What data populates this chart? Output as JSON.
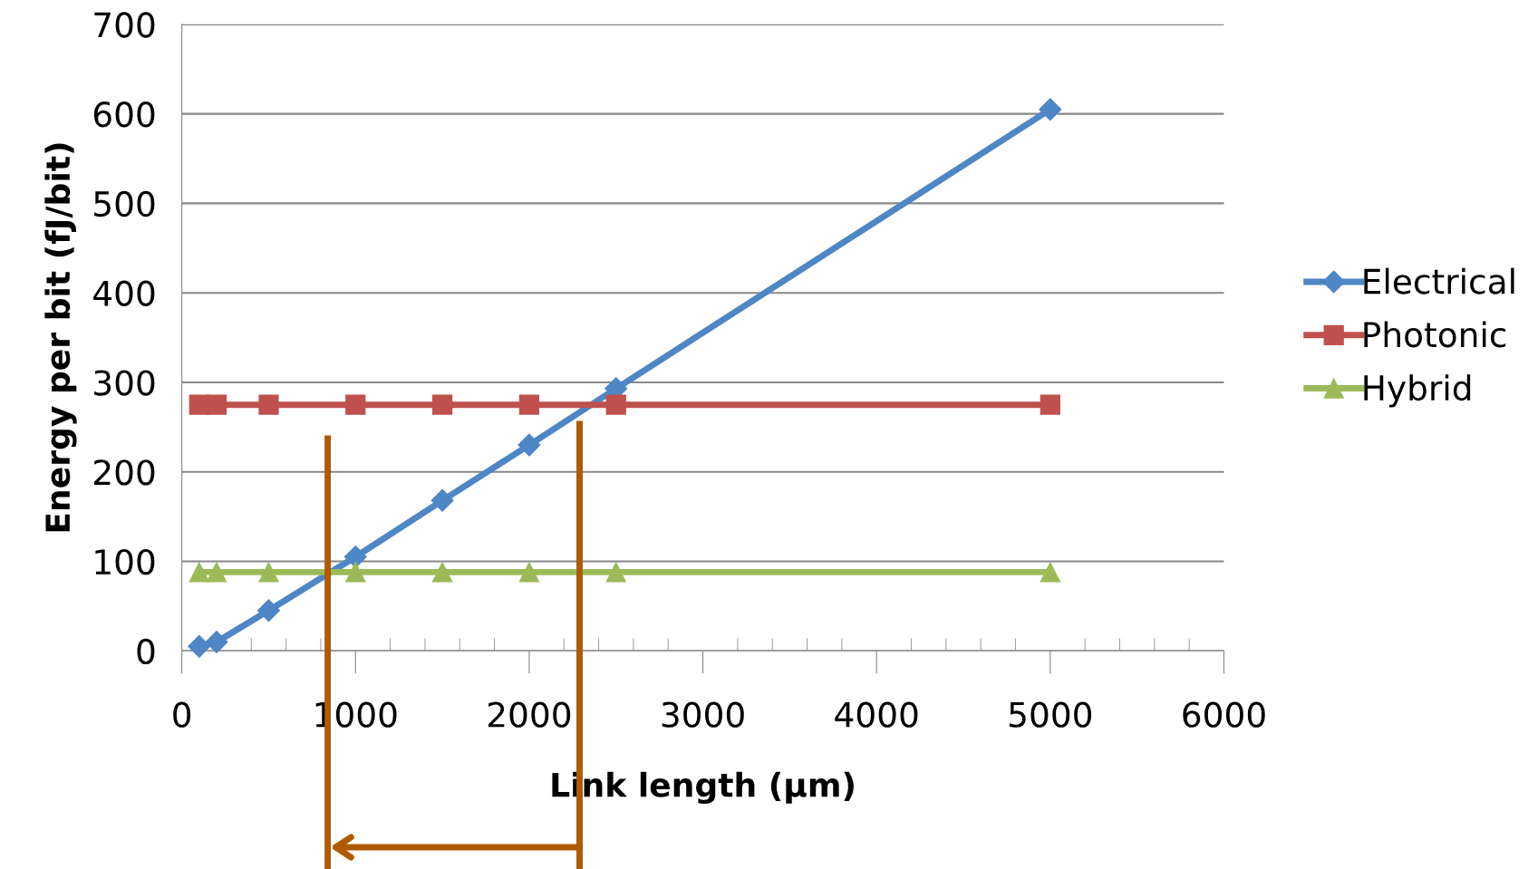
{
  "chart_data": {
    "type": "line",
    "xlabel": "Link length (µm)",
    "ylabel": "Energy per bit (fJ/bit)",
    "x": [
      100,
      200,
      500,
      1000,
      1500,
      2000,
      2500,
      5000
    ],
    "series": [
      {
        "name": "Electrical",
        "color": "#4f86c6",
        "marker": "diamond",
        "values": [
          5,
          10,
          45,
          105,
          168,
          230,
          293,
          605
        ]
      },
      {
        "name": "Photonic",
        "color": "#c0504d",
        "marker": "square",
        "values": [
          275,
          275,
          275,
          275,
          275,
          275,
          275,
          275
        ]
      },
      {
        "name": "Hybrid",
        "color": "#9bbb59",
        "marker": "triangle",
        "values": [
          88,
          88,
          88,
          88,
          88,
          88,
          88,
          88
        ]
      }
    ],
    "xlim": [
      0,
      6000
    ],
    "xticks": [
      0,
      1000,
      2000,
      3000,
      4000,
      5000,
      6000
    ],
    "ylim": [
      0,
      700
    ],
    "yticks": [
      0,
      100,
      200,
      300,
      400,
      500,
      600,
      700
    ],
    "ref_lines": [
      {
        "axis": "x",
        "value": 840,
        "color": "#b05a00"
      },
      {
        "axis": "x",
        "value": 2290,
        "color": "#b05a00"
      }
    ],
    "grid": "y",
    "legend": "right",
    "line_style": "solid"
  }
}
